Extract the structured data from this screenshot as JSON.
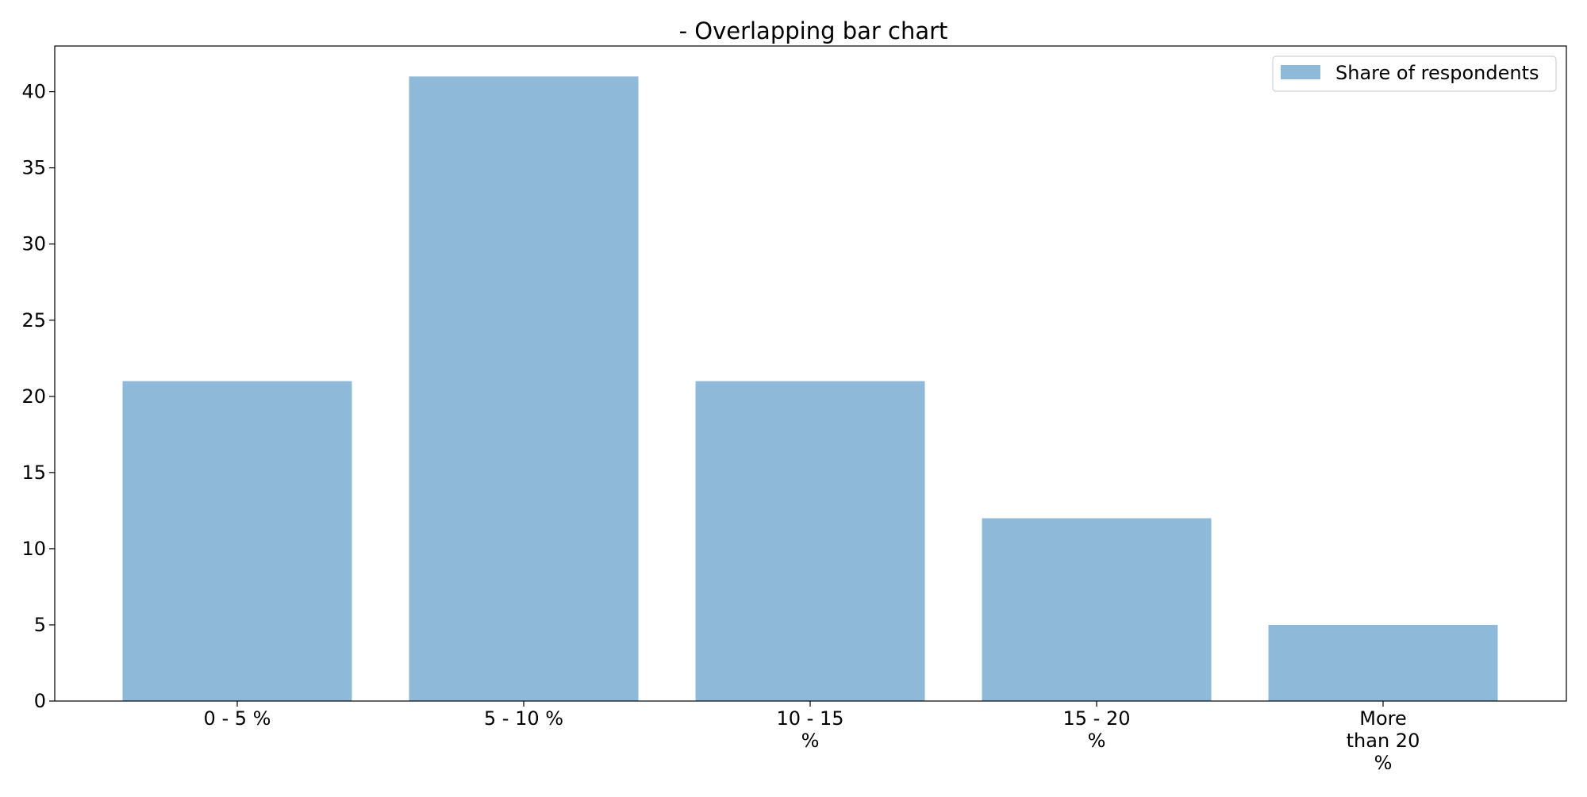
{
  "chart_data": {
    "type": "bar",
    "title": "- Overlapping bar chart",
    "xlabel": "",
    "ylabel": "",
    "categories": [
      "0 - 5 %",
      "5 - 10 %",
      "10 - 15 %",
      "15 - 20 %",
      "More than 20 %"
    ],
    "category_label_lines": [
      [
        "0 - 5 %"
      ],
      [
        "5 - 10 %"
      ],
      [
        "10 - 15",
        "%"
      ],
      [
        "15 - 20",
        "%"
      ],
      [
        "More",
        "than 20",
        "%"
      ]
    ],
    "series": [
      {
        "name": "Share of respondents",
        "values": [
          21,
          41,
          21,
          12,
          5
        ],
        "color": "#8fb9d9"
      }
    ],
    "ylim": [
      0,
      43
    ],
    "yticks": [
      0,
      5,
      10,
      15,
      20,
      25,
      30,
      35,
      40
    ],
    "grid": false,
    "legend": {
      "position": "top-right",
      "entries": [
        "Share of respondents"
      ]
    }
  }
}
